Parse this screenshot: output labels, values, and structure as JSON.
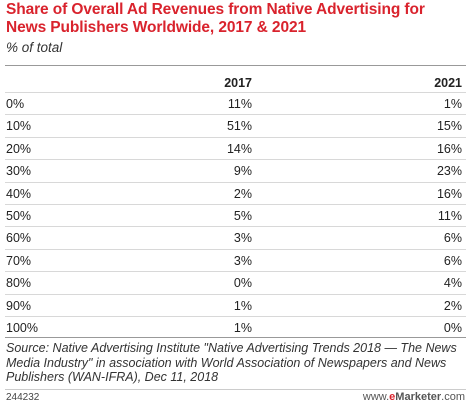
{
  "header": {
    "title": "Share of Overall Ad Revenues from Native Advertising for News Publishers Worldwide, 2017 & 2021",
    "subtitle": "% of total"
  },
  "chart_data": {
    "type": "table",
    "columns": [
      "",
      "2017",
      "2021"
    ],
    "rows": [
      {
        "label": "0%",
        "v2017": "11%",
        "v2021": "1%"
      },
      {
        "label": "10%",
        "v2017": "51%",
        "v2021": "15%"
      },
      {
        "label": "20%",
        "v2017": "14%",
        "v2021": "16%"
      },
      {
        "label": "30%",
        "v2017": "9%",
        "v2021": "23%"
      },
      {
        "label": "40%",
        "v2017": "2%",
        "v2021": "16%"
      },
      {
        "label": "50%",
        "v2017": "5%",
        "v2021": "11%"
      },
      {
        "label": "60%",
        "v2017": "3%",
        "v2021": "6%"
      },
      {
        "label": "70%",
        "v2017": "3%",
        "v2021": "6%"
      },
      {
        "label": "80%",
        "v2017": "0%",
        "v2021": "4%"
      },
      {
        "label": "90%",
        "v2017": "1%",
        "v2021": "2%"
      },
      {
        "label": "100%",
        "v2017": "1%",
        "v2021": "0%"
      }
    ]
  },
  "footer": {
    "source": "Source: Native Advertising Institute \"Native Advertising Trends 2018 — The News Media Industry\" in association with World Association of Newspapers and News Publishers (WAN-IFRA), Dec 11, 2018",
    "chart_id": "244232",
    "brand_prefix": "www.",
    "brand_e": "e",
    "brand_name": "Marketer",
    "brand_suffix": ".com"
  },
  "colors": {
    "title": "#d9232d",
    "brand_accent": "#d9232d"
  }
}
